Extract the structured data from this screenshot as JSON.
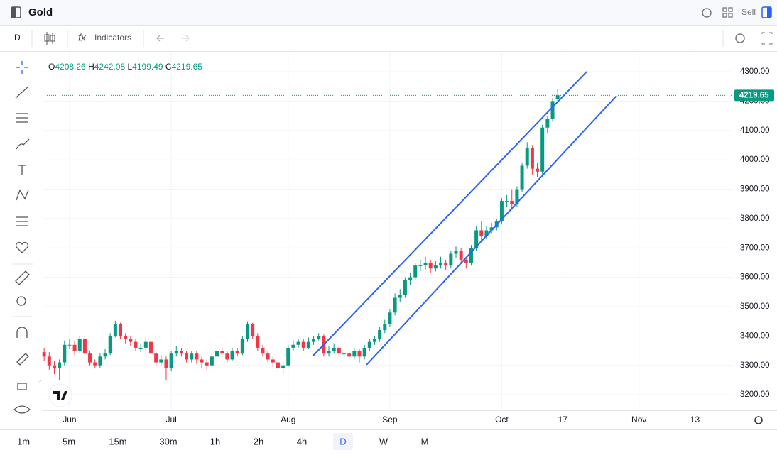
{
  "header": {
    "title": "Gold",
    "sell": "Sell"
  },
  "toolbar": {
    "interval": "D",
    "indicators": "Indicators"
  },
  "chart_data": {
    "type": "candlestick",
    "legend_keys": [
      "O",
      "H",
      "L",
      "C"
    ],
    "up_color": "#089981",
    "down_color": "#f23645",
    "open": [
      3345,
      3330,
      3300,
      3290,
      3310,
      3370,
      3370,
      3350,
      3390,
      3340,
      3310,
      3300,
      3330,
      3340,
      3400,
      3440,
      3400,
      3390,
      3380,
      3360,
      3360,
      3380,
      3340,
      3310,
      3320,
      3290,
      3340,
      3350,
      3340,
      3320,
      3340,
      3320,
      3310,
      3300,
      3330,
      3350,
      3340,
      3320,
      3350,
      3340,
      3390,
      3440,
      3400,
      3360,
      3340,
      3320,
      3310,
      3290,
      3300,
      3360,
      3370,
      3380,
      3360,
      3380,
      3390,
      3400,
      3340,
      3350,
      3360,
      3340,
      3340,
      3330,
      3350,
      3330,
      3360,
      3380,
      3390,
      3420,
      3440,
      3480,
      3530,
      3540,
      3590,
      3600,
      3640,
      3640,
      3650,
      3630,
      3640,
      3650,
      3640,
      3680,
      3690,
      3660,
      3650,
      3700,
      3760,
      3740,
      3760,
      3770,
      3790,
      3860,
      3860,
      3850,
      3900,
      3980,
      4040,
      3970,
      3960,
      4110,
      4140,
      4208.26
    ],
    "high": [
      3360,
      3345,
      3315,
      3320,
      3385,
      3390,
      3385,
      3400,
      3400,
      3350,
      3320,
      3340,
      3355,
      3410,
      3452,
      3445,
      3410,
      3400,
      3390,
      3375,
      3395,
      3390,
      3350,
      3335,
      3330,
      3350,
      3365,
      3360,
      3350,
      3350,
      3350,
      3330,
      3320,
      3340,
      3365,
      3360,
      3350,
      3360,
      3360,
      3400,
      3450,
      3445,
      3410,
      3370,
      3350,
      3330,
      3320,
      3315,
      3370,
      3385,
      3390,
      3390,
      3395,
      3400,
      3410,
      3405,
      3365,
      3375,
      3365,
      3355,
      3350,
      3360,
      3355,
      3370,
      3390,
      3400,
      3430,
      3455,
      3490,
      3545,
      3560,
      3600,
      3615,
      3650,
      3660,
      3670,
      3660,
      3655,
      3670,
      3660,
      3690,
      3705,
      3700,
      3670,
      3710,
      3775,
      3790,
      3775,
      3785,
      3800,
      3870,
      3880,
      3900,
      3910,
      3990,
      4060,
      4050,
      3990,
      4120,
      4150,
      4210,
      4242.08
    ],
    "low": [
      3315,
      3285,
      3270,
      3250,
      3300,
      3355,
      3335,
      3340,
      3330,
      3300,
      3290,
      3290,
      3320,
      3335,
      3395,
      3390,
      3375,
      3365,
      3350,
      3345,
      3350,
      3330,
      3295,
      3300,
      3250,
      3280,
      3330,
      3330,
      3310,
      3310,
      3305,
      3290,
      3285,
      3290,
      3320,
      3330,
      3310,
      3315,
      3330,
      3335,
      3380,
      3390,
      3350,
      3330,
      3310,
      3295,
      3275,
      3270,
      3295,
      3350,
      3360,
      3350,
      3355,
      3370,
      3385,
      3330,
      3330,
      3340,
      3330,
      3325,
      3320,
      3320,
      3310,
      3320,
      3350,
      3370,
      3380,
      3410,
      3430,
      3470,
      3515,
      3530,
      3575,
      3590,
      3620,
      3625,
      3615,
      3620,
      3630,
      3625,
      3630,
      3665,
      3645,
      3630,
      3640,
      3690,
      3725,
      3730,
      3750,
      3760,
      3780,
      3840,
      3830,
      3840,
      3890,
      3970,
      3950,
      3940,
      3950,
      4090,
      4130,
      4199.49
    ],
    "close": [
      3330,
      3300,
      3290,
      3310,
      3370,
      3370,
      3350,
      3390,
      3340,
      3310,
      3300,
      3330,
      3340,
      3400,
      3440,
      3400,
      3390,
      3380,
      3360,
      3360,
      3380,
      3340,
      3310,
      3320,
      3290,
      3340,
      3350,
      3340,
      3320,
      3340,
      3320,
      3310,
      3300,
      3330,
      3350,
      3340,
      3320,
      3350,
      3340,
      3390,
      3440,
      3400,
      3360,
      3340,
      3320,
      3310,
      3290,
      3300,
      3360,
      3370,
      3380,
      3360,
      3380,
      3390,
      3400,
      3340,
      3350,
      3360,
      3340,
      3340,
      3330,
      3350,
      3330,
      3360,
      3380,
      3390,
      3420,
      3440,
      3480,
      3530,
      3540,
      3590,
      3600,
      3640,
      3640,
      3650,
      3630,
      3640,
      3650,
      3640,
      3680,
      3690,
      3660,
      3650,
      3700,
      3760,
      3740,
      3760,
      3770,
      3790,
      3860,
      3860,
      3850,
      3900,
      3980,
      4040,
      3970,
      3960,
      4110,
      4140,
      4200,
      4219.65
    ],
    "xlim": [
      -0.3,
      135.2
    ],
    "xticks": [
      {
        "value": 5,
        "label": "Jun"
      },
      {
        "value": 25,
        "label": "Jul"
      },
      {
        "value": 48,
        "label": "Aug"
      },
      {
        "value": 68,
        "label": "Sep"
      },
      {
        "value": 90,
        "label": "Oct"
      },
      {
        "value": 102,
        "label": "17"
      },
      {
        "value": 117,
        "label": "Nov"
      },
      {
        "value": 128,
        "label": "13"
      }
    ],
    "ylim": [
      3147,
      4368
    ],
    "yticks": [
      {
        "value": 3200,
        "label": "3200.00"
      },
      {
        "value": 3300,
        "label": "3300.00"
      },
      {
        "value": 3400,
        "label": "3400.00"
      },
      {
        "value": 3500,
        "label": "3500.00"
      },
      {
        "value": 3600,
        "label": "3600.00"
      },
      {
        "value": 3700,
        "label": "3700.00"
      },
      {
        "value": 3800,
        "label": "3800.00"
      },
      {
        "value": 3900,
        "label": "3900.00"
      },
      {
        "value": 4000,
        "label": "4000.00"
      },
      {
        "value": 4100,
        "label": "4100.00"
      },
      {
        "value": 4200,
        "label": "4200.00"
      },
      {
        "value": 4300,
        "label": "4300.00"
      }
    ],
    "grid": true
  },
  "timeframes": [
    "1m",
    "5m",
    "15m",
    "30m",
    "1h",
    "2h",
    "4h",
    "D",
    "W",
    "M"
  ],
  "active_timeframe": 7
}
